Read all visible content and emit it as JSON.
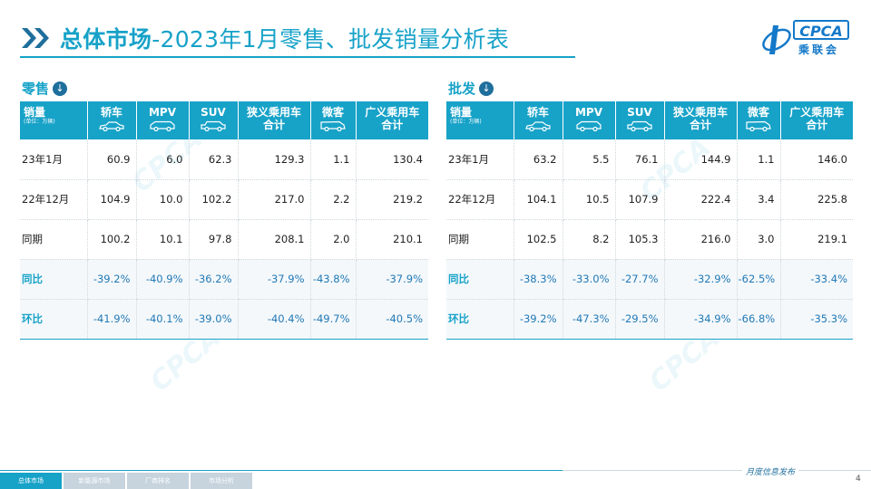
{
  "header": {
    "title_strong": "总体市场",
    "title_rest": "-2023年1月零售、批发销量分析表"
  },
  "logo": {
    "abbr": "CPCA",
    "cn": "乘联会"
  },
  "columns": {
    "first_line1": "销量",
    "first_line2": "(单位：万辆)",
    "headers": [
      {
        "line1": "轿车",
        "line2": "",
        "icon": "sedan-icon"
      },
      {
        "line1": "MPV",
        "line2": "",
        "icon": "mpv-icon"
      },
      {
        "line1": "SUV",
        "line2": "",
        "icon": "suv-icon"
      },
      {
        "line1": "狭义乘用车",
        "line2": "合计",
        "icon": ""
      },
      {
        "line1": "微客",
        "line2": "",
        "icon": "minivan-icon"
      },
      {
        "line1": "广义乘用车",
        "line2": "合计",
        "icon": ""
      }
    ]
  },
  "retail": {
    "label": "零售",
    "rows": [
      {
        "label": "23年1月",
        "values": [
          "60.9",
          "6.0",
          "62.3",
          "129.3",
          "1.1",
          "130.4"
        ]
      },
      {
        "label": "22年12月",
        "values": [
          "104.9",
          "10.0",
          "102.2",
          "217.0",
          "2.2",
          "219.2"
        ]
      },
      {
        "label": "同期",
        "values": [
          "100.2",
          "10.1",
          "97.8",
          "208.1",
          "2.0",
          "210.1"
        ]
      },
      {
        "label": "同比",
        "values": [
          "-39.2%",
          "-40.9%",
          "-36.2%",
          "-37.9%",
          "-43.8%",
          "-37.9%"
        ]
      },
      {
        "label": "环比",
        "values": [
          "-41.9%",
          "-40.1%",
          "-39.0%",
          "-40.4%",
          "-49.7%",
          "-40.5%"
        ]
      }
    ]
  },
  "wholesale": {
    "label": "批发",
    "rows": [
      {
        "label": "23年1月",
        "values": [
          "63.2",
          "5.5",
          "76.1",
          "144.9",
          "1.1",
          "146.0"
        ]
      },
      {
        "label": "22年12月",
        "values": [
          "104.1",
          "10.5",
          "107.9",
          "222.4",
          "3.4",
          "225.8"
        ]
      },
      {
        "label": "同期",
        "values": [
          "102.5",
          "8.2",
          "105.3",
          "216.0",
          "3.0",
          "219.1"
        ]
      },
      {
        "label": "同比",
        "values": [
          "-38.3%",
          "-33.0%",
          "-27.7%",
          "-32.9%",
          "-62.5%",
          "-33.4%"
        ]
      },
      {
        "label": "环比",
        "values": [
          "-39.2%",
          "-47.3%",
          "-29.5%",
          "-34.9%",
          "-66.8%",
          "-35.3%"
        ]
      }
    ]
  },
  "footer": {
    "tabs": [
      "总体市场",
      "新能源市场",
      "厂商排名",
      "市场分析"
    ],
    "active_tab": 0,
    "brand": "月度信息发布",
    "page": "4"
  },
  "colors": {
    "accent": "#17a2c8",
    "dark": "#1f6f9d",
    "pct": "#2279b5"
  }
}
